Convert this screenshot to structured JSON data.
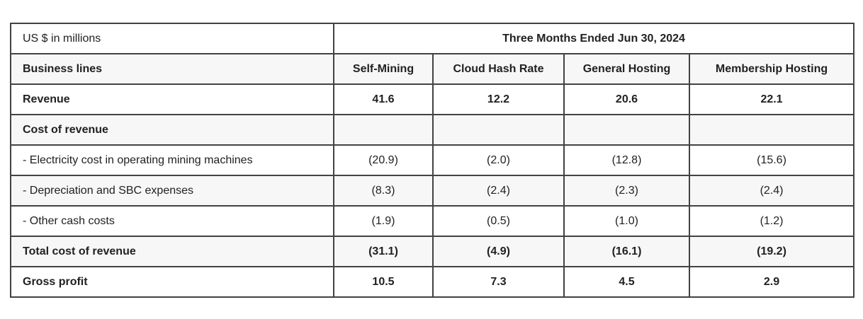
{
  "chart_data": {
    "type": "table",
    "unit_label": "US $ in millions",
    "period_header": "Three Months Ended Jun 30, 2024",
    "row_header_label": "Business lines",
    "columns": [
      "Self-Mining",
      "Cloud Hash Rate",
      "General Hosting",
      "Membership Hosting"
    ],
    "rows": [
      {
        "label": "Revenue",
        "values": [
          "41.6",
          "12.2",
          "20.6",
          "22.1"
        ]
      },
      {
        "label": "Cost of revenue",
        "values": [
          "",
          "",
          "",
          ""
        ]
      },
      {
        "label": "- Electricity cost in operating mining machines",
        "values": [
          "(20.9)",
          "(2.0)",
          "(12.8)",
          "(15.6)"
        ]
      },
      {
        "label": "- Depreciation and SBC expenses",
        "values": [
          "(8.3)",
          "(2.4)",
          "(2.3)",
          "(2.4)"
        ]
      },
      {
        "label": "- Other cash costs",
        "values": [
          "(1.9)",
          "(0.5)",
          "(1.0)",
          "(1.2)"
        ]
      },
      {
        "label": "Total cost of revenue",
        "values": [
          "(31.1)",
          "(4.9)",
          "(16.1)",
          "(19.2)"
        ]
      },
      {
        "label": "Gross profit",
        "values": [
          "10.5",
          "7.3",
          "4.5",
          "2.9"
        ]
      }
    ],
    "colors": {
      "border": "#424242",
      "stripe_background": "#f7f7f7",
      "text": "#212121",
      "page_background": "#ffffff"
    }
  }
}
